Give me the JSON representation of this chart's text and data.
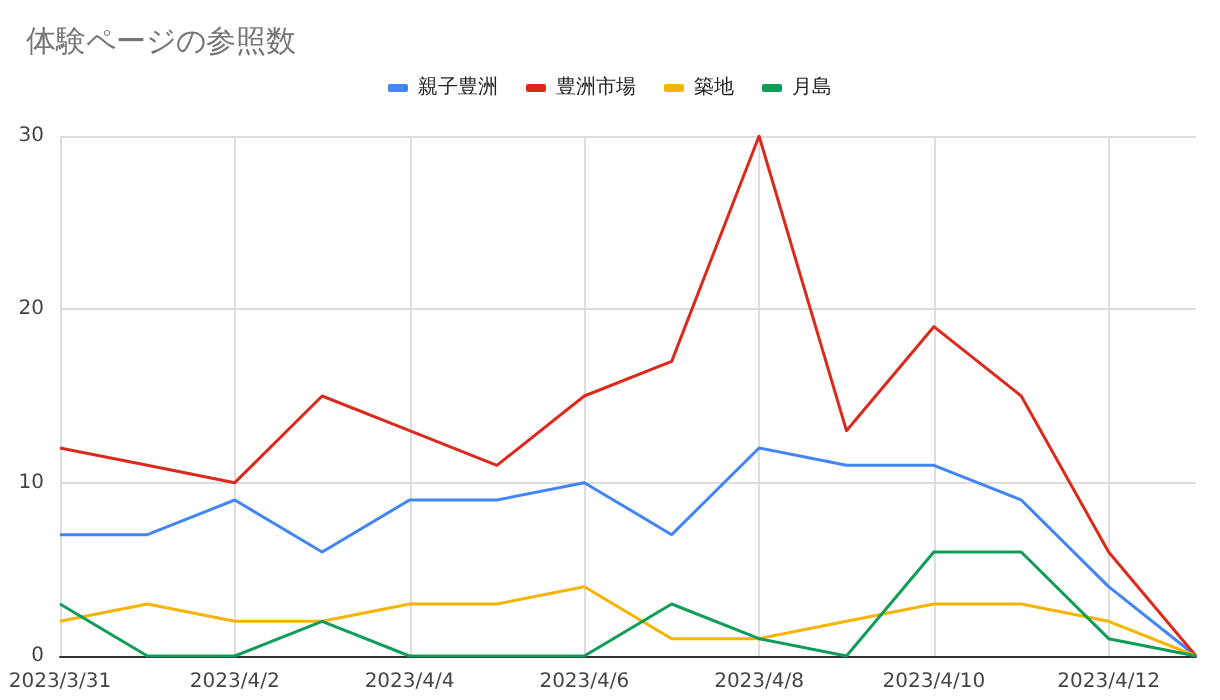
{
  "chart_data": {
    "type": "line",
    "title": "体験ページの参照数",
    "categories": [
      "2023/3/31",
      null,
      "2023/4/2",
      null,
      "2023/4/4",
      null,
      "2023/4/6",
      null,
      "2023/4/8",
      null,
      "2023/4/10",
      null,
      "2023/4/12",
      null
    ],
    "series": [
      {
        "name": "親子豊洲",
        "color": "#4285f4",
        "values": [
          7,
          7,
          9,
          6,
          9,
          9,
          10,
          7,
          12,
          11,
          11,
          9,
          4,
          0
        ]
      },
      {
        "name": "豊洲市場",
        "color": "#db2a1b",
        "values": [
          12,
          11,
          10,
          15,
          13,
          11,
          15,
          17,
          30,
          13,
          19,
          15,
          6,
          0
        ]
      },
      {
        "name": "築地",
        "color": "#f4b400",
        "values": [
          2,
          3,
          2,
          2,
          3,
          3,
          4,
          1,
          1,
          2,
          3,
          3,
          2,
          0
        ]
      },
      {
        "name": "月島",
        "color": "#0f9d58",
        "values": [
          3,
          0,
          0,
          2,
          0,
          0,
          0,
          3,
          1,
          0,
          6,
          6,
          1,
          0
        ]
      }
    ],
    "ylim": [
      0,
      30
    ],
    "yticks": [
      0,
      10,
      20,
      30
    ],
    "grid": true,
    "legend": "top",
    "marker": "none",
    "line_style": "solid"
  }
}
